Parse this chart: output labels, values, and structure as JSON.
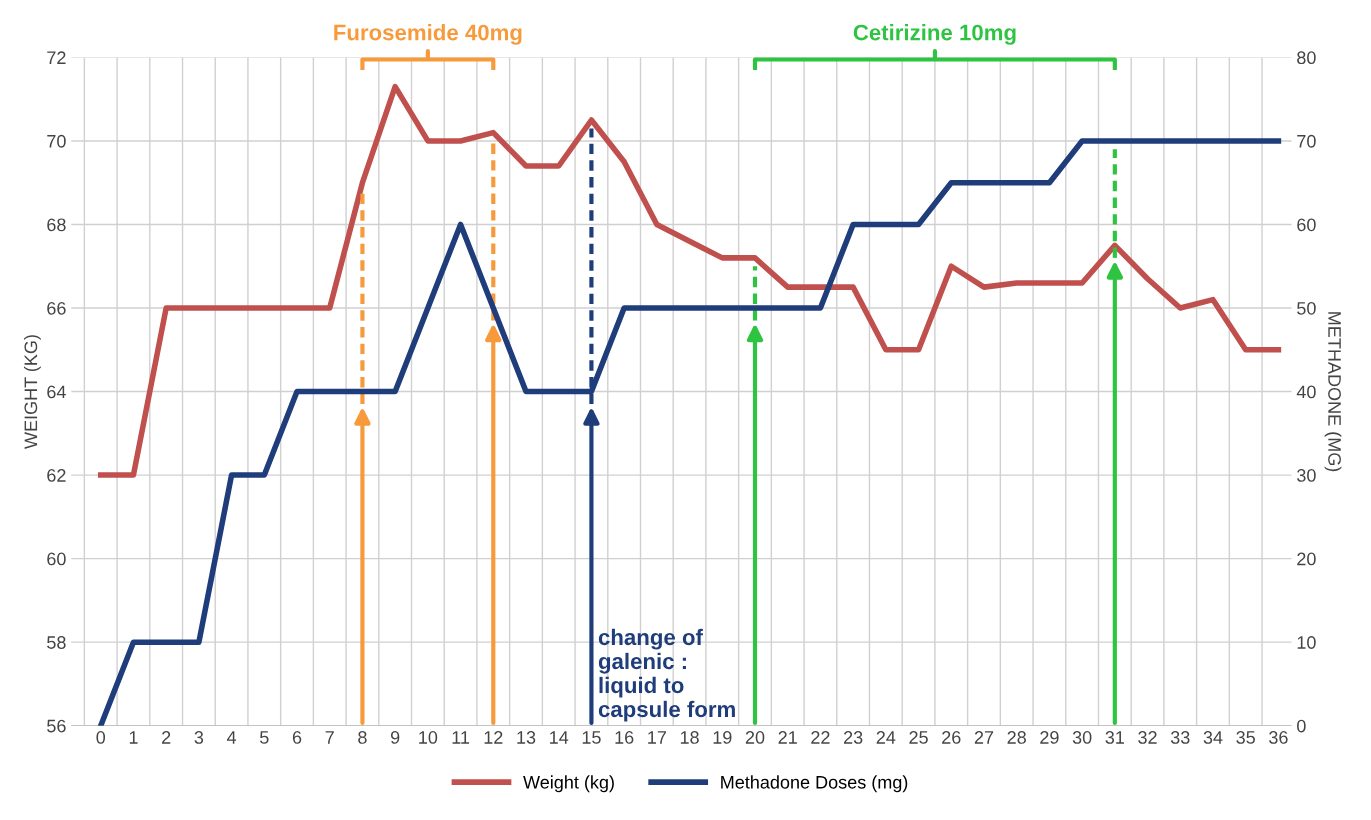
{
  "chart_data": {
    "type": "line",
    "categories": [
      "0",
      "1",
      "2",
      "3",
      "4",
      "5",
      "6",
      "7",
      "8",
      "9",
      "10",
      "11",
      "12",
      "13",
      "14",
      "15",
      "16",
      "17",
      "18",
      "19",
      "20",
      "21",
      "22",
      "23",
      "24",
      "25",
      "26",
      "27",
      "28",
      "29",
      "30",
      "31",
      "32",
      "33",
      "34",
      "35",
      "36"
    ],
    "series": [
      {
        "name": "Weight (kg)",
        "color": "#c0504d",
        "values": [
          62,
          62,
          66,
          66,
          66,
          66,
          66,
          66,
          69,
          71.3,
          70,
          70,
          70.2,
          69.4,
          69.4,
          70.5,
          69.5,
          68,
          67.6,
          67.2,
          67.2,
          66.5,
          66.5,
          66.5,
          65,
          65,
          67,
          66.5,
          66.6,
          66.6,
          66.6,
          67.5,
          66.7,
          66,
          66.2,
          65,
          65
        ]
      },
      {
        "name": "Methadone Doses (mg)",
        "color": "#1f3d7a",
        "axis": "y2",
        "values": [
          0,
          10,
          10,
          10,
          30,
          30,
          40,
          40,
          40,
          40,
          50,
          60,
          50,
          40,
          40,
          40,
          50,
          50,
          50,
          50,
          50,
          50,
          50,
          60,
          60,
          60,
          65,
          65,
          65,
          65,
          70,
          70,
          70,
          70,
          70,
          70,
          70
        ]
      }
    ],
    "ylabel": "WEIGHT (KG)",
    "y2label": "METHADONE (MG)",
    "ylim": [
      56,
      72
    ],
    "yticks": [
      56,
      58,
      60,
      62,
      64,
      66,
      68,
      70,
      72
    ],
    "y2lim": [
      0,
      80
    ],
    "y2ticks": [
      0,
      10,
      20,
      30,
      40,
      50,
      60,
      70,
      80
    ],
    "annotations": [
      "Furosemide 40mg",
      "Cetirizine 10mg"
    ],
    "ref_lines": [
      {
        "axis": "x",
        "value": "8",
        "color": "#f79a3c",
        "line_style": "dashed"
      },
      {
        "axis": "x",
        "value": "12",
        "color": "#f79a3c",
        "line_style": "dashed"
      },
      {
        "axis": "x",
        "value": "15",
        "label": "change of\ngalenic :\nliquid to\ncapsule form",
        "color": "#1f3d7a",
        "line_style": "dashed"
      },
      {
        "axis": "x",
        "value": "20",
        "color": "#2ec441",
        "line_style": "dashed"
      },
      {
        "axis": "x",
        "value": "31",
        "color": "#2ec441",
        "line_style": "dashed"
      }
    ],
    "grid": true,
    "legend": "bottom",
    "marker": "none",
    "line_style": "solid"
  }
}
